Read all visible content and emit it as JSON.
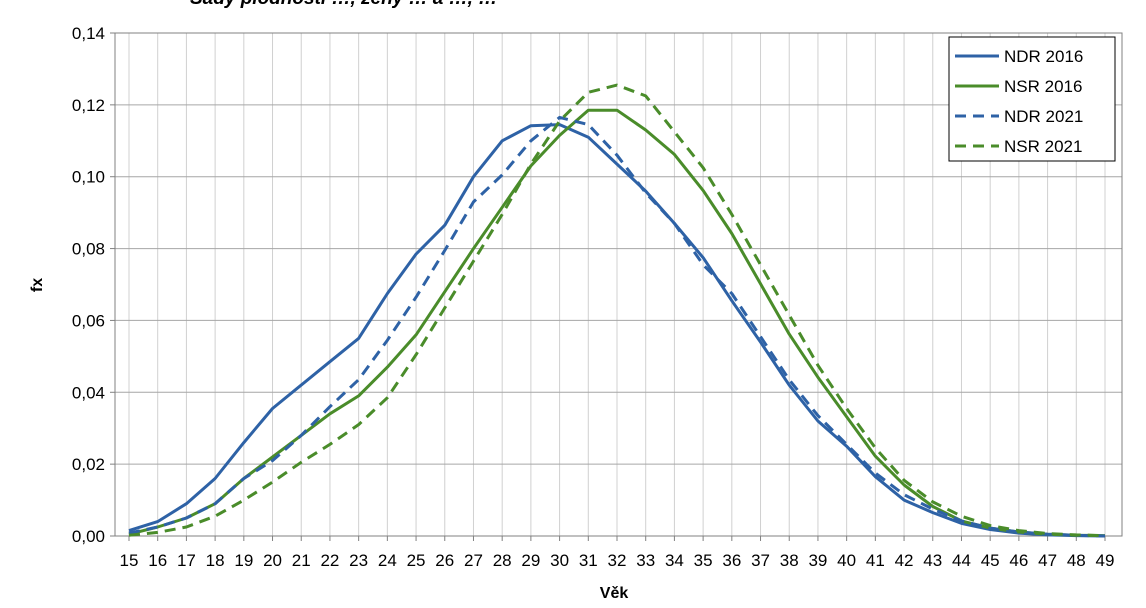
{
  "header_fragment": "Sady plodnosti …, ženy … a …, …",
  "chart_data": {
    "type": "line",
    "xlabel": "Věk",
    "ylabel": "fx",
    "ylim": [
      0,
      0.14
    ],
    "y_ticks": [
      "0,00",
      "0,02",
      "0,04",
      "0,06",
      "0,08",
      "0,10",
      "0,12",
      "0,14"
    ],
    "y_tick_values": [
      0,
      0.02,
      0.04,
      0.06,
      0.08,
      0.1,
      0.12,
      0.14
    ],
    "x": [
      15,
      16,
      17,
      18,
      19,
      20,
      21,
      22,
      23,
      24,
      25,
      26,
      27,
      28,
      29,
      30,
      31,
      32,
      33,
      34,
      35,
      36,
      37,
      38,
      39,
      40,
      41,
      42,
      43,
      44,
      45,
      46,
      47,
      48,
      49
    ],
    "x_tick_labels": [
      "15",
      "16",
      "17",
      "18",
      "19",
      "20",
      "21",
      "22",
      "23",
      "24",
      "25",
      "26",
      "27",
      "28",
      "29",
      "30",
      "31",
      "32",
      "33",
      "34",
      "35",
      "36",
      "37",
      "38",
      "39",
      "40",
      "41",
      "42",
      "43",
      "44",
      "45",
      "46",
      "47",
      "48",
      "49"
    ],
    "grid": true,
    "legend_position": "top-right",
    "series": [
      {
        "name": "NDR 2016",
        "color": "#2e62a6",
        "dash": "solid",
        "values": [
          0.0015,
          0.004,
          0.009,
          0.016,
          0.026,
          0.0355,
          0.042,
          0.0485,
          0.055,
          0.0675,
          0.0785,
          0.0865,
          0.1,
          0.11,
          0.1142,
          0.1145,
          0.111,
          0.1035,
          0.096,
          0.087,
          0.0775,
          0.0655,
          0.054,
          0.042,
          0.032,
          0.025,
          0.0165,
          0.01,
          0.0065,
          0.0035,
          0.0018,
          0.0008,
          0.0003,
          0.0001,
          0.0
        ]
      },
      {
        "name": "NSR 2016",
        "color": "#4a8c2a",
        "dash": "solid",
        "values": [
          0.0005,
          0.0025,
          0.005,
          0.009,
          0.016,
          0.022,
          0.028,
          0.034,
          0.039,
          0.047,
          0.056,
          0.068,
          0.08,
          0.0915,
          0.103,
          0.1115,
          0.1185,
          0.1185,
          0.113,
          0.1062,
          0.0962,
          0.0842,
          0.0702,
          0.0562,
          0.0442,
          0.0332,
          0.0222,
          0.0142,
          0.0082,
          0.0042,
          0.0022,
          0.0011,
          0.0005,
          0.0002,
          0.0001
        ]
      },
      {
        "name": "NDR 2021",
        "color": "#2e62a6",
        "dash": "dashed",
        "values": [
          0.0008,
          0.0025,
          0.005,
          0.009,
          0.016,
          0.021,
          0.028,
          0.036,
          0.0435,
          0.0545,
          0.0665,
          0.0795,
          0.093,
          0.1005,
          0.11,
          0.1165,
          0.1145,
          0.106,
          0.0955,
          0.087,
          0.0755,
          0.0675,
          0.0555,
          0.0435,
          0.0335,
          0.0255,
          0.0175,
          0.0115,
          0.0075,
          0.0042,
          0.0022,
          0.0011,
          0.0005,
          0.0002,
          0.0
        ]
      },
      {
        "name": "NSR 2021",
        "color": "#4a8c2a",
        "dash": "dashed",
        "values": [
          0.0002,
          0.001,
          0.0025,
          0.0055,
          0.01,
          0.015,
          0.0205,
          0.0255,
          0.031,
          0.0385,
          0.0505,
          0.0635,
          0.0765,
          0.0895,
          0.1035,
          0.1155,
          0.1235,
          0.1255,
          0.1225,
          0.1125,
          0.1025,
          0.0895,
          0.0755,
          0.0615,
          0.0475,
          0.0355,
          0.0245,
          0.0155,
          0.0095,
          0.0055,
          0.0029,
          0.0015,
          0.0007,
          0.0003,
          0.0001
        ]
      }
    ]
  }
}
